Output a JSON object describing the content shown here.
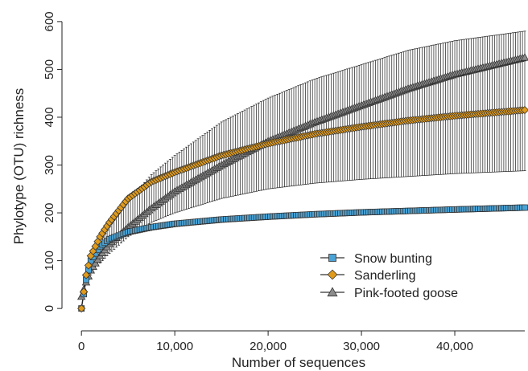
{
  "chart_data": {
    "type": "line",
    "title": "",
    "xlabel": "Number of sequences",
    "ylabel": "Phylotype (OTU) richness",
    "xlim": [
      -2000,
      47500
    ],
    "ylim": [
      -30,
      625
    ],
    "x_ticks": [
      0,
      10000,
      20000,
      30000,
      40000
    ],
    "x_tick_labels": [
      "0",
      "10,000",
      "20,000",
      "30,000",
      "40,000"
    ],
    "y_ticks": [
      0,
      100,
      200,
      300,
      400,
      500,
      600
    ],
    "y_tick_labels": [
      "0",
      "100",
      "200",
      "300",
      "400",
      "500",
      "600"
    ],
    "grid": false,
    "legend_position": "bottom-right",
    "series": [
      {
        "name": "Snow bunting",
        "marker": "square",
        "color": "#4aa3d6",
        "x": [
          0,
          500,
          1000,
          2000,
          3000,
          5000,
          7500,
          10000,
          15000,
          20000,
          25000,
          30000,
          35000,
          40000,
          47500
        ],
        "values": [
          0,
          60,
          100,
          130,
          145,
          160,
          170,
          177,
          186,
          192,
          197,
          201,
          204,
          207,
          211
        ],
        "lower": [
          0,
          58,
          98,
          128,
          143,
          158,
          168,
          175,
          184,
          190,
          195,
          199,
          202,
          205,
          209
        ],
        "upper": [
          0,
          62,
          102,
          132,
          147,
          162,
          172,
          179,
          188,
          194,
          199,
          203,
          206,
          209,
          213
        ]
      },
      {
        "name": "Sanderling",
        "marker": "diamond",
        "color": "#e09b1c",
        "x": [
          0,
          500,
          1000,
          2000,
          3000,
          5000,
          7500,
          10000,
          15000,
          20000,
          25000,
          30000,
          35000,
          40000,
          47500
        ],
        "values": [
          0,
          70,
          110,
          150,
          180,
          230,
          265,
          285,
          320,
          345,
          365,
          380,
          393,
          403,
          415
        ],
        "lower": [
          0,
          68,
          108,
          148,
          178,
          228,
          263,
          283,
          318,
          343,
          363,
          378,
          391,
          401,
          413
        ],
        "upper": [
          0,
          72,
          112,
          152,
          182,
          232,
          267,
          287,
          322,
          347,
          367,
          382,
          395,
          405,
          417
        ]
      },
      {
        "name": "Pink-footed goose",
        "marker": "triangle",
        "color": "#8c8c8c",
        "x": [
          0,
          500,
          1000,
          2000,
          3000,
          5000,
          7500,
          10000,
          15000,
          20000,
          25000,
          30000,
          35000,
          40000,
          47500
        ],
        "values": [
          25,
          55,
          80,
          110,
          135,
          170,
          210,
          245,
          300,
          350,
          390,
          425,
          460,
          490,
          525
        ],
        "lower": [
          25,
          50,
          70,
          95,
          115,
          150,
          180,
          200,
          230,
          250,
          262,
          270,
          276,
          282,
          288
        ],
        "upper": [
          25,
          60,
          95,
          140,
          170,
          225,
          280,
          320,
          390,
          440,
          480,
          510,
          540,
          560,
          580
        ]
      }
    ]
  }
}
